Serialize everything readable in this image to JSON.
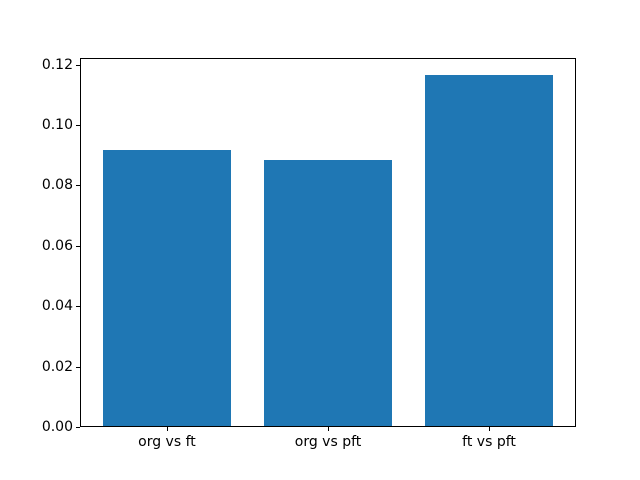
{
  "chart_data": {
    "type": "bar",
    "categories": [
      "org vs ft",
      "org vs pft",
      "ft vs pft"
    ],
    "values": [
      0.0918,
      0.0884,
      0.1165
    ],
    "bar_color": "#1f77b4",
    "bar_width": 0.8,
    "xlim": [
      -0.54,
      2.54
    ],
    "ylim": [
      0,
      0.1223
    ],
    "yticks": [
      0.0,
      0.02,
      0.04,
      0.06,
      0.08,
      0.1,
      0.12
    ],
    "ytick_label_format": "two_decimals",
    "grid": false,
    "legend": "none",
    "background_color": "#ffffff",
    "spine_color": "#000000"
  }
}
